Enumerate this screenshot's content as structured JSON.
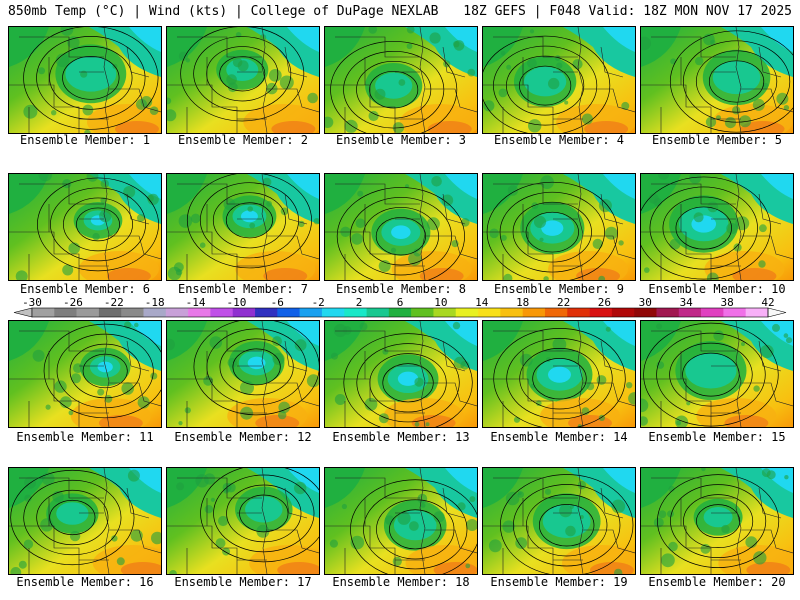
{
  "header": {
    "left": "850mb Temp (°C) | Wind (kts) | College of DuPage NEXLAB",
    "right": "18Z GEFS | F048 Valid: 18Z MON NOV 17 2025"
  },
  "colorbar": {
    "labels": [
      "-30",
      "-26",
      "-22",
      "-18",
      "-14",
      "-10",
      "-6",
      "-2",
      "2",
      "6",
      "10",
      "14",
      "18",
      "22",
      "26",
      "30",
      "34",
      "38",
      "42"
    ],
    "colors": [
      "#a0a0a0",
      "#7e7e7e",
      "#9a9a9a",
      "#6e6e6e",
      "#8a8a8a",
      "#a8a8c8",
      "#c8a0d8",
      "#e878e8",
      "#c050e8",
      "#9030d0",
      "#3030c0",
      "#1060e8",
      "#18a0f0",
      "#20d8f0",
      "#18e8c8",
      "#18c890",
      "#20b040",
      "#60c020",
      "#a8d820",
      "#e8f020",
      "#f8e018",
      "#f8c010",
      "#f89808",
      "#f06808",
      "#e03008",
      "#d81010",
      "#b00808",
      "#900808",
      "#a01850",
      "#c02888",
      "#e040c0",
      "#f070e8",
      "#f8b0f8"
    ]
  },
  "members": [
    {
      "caption": "Ensemble Member: 1"
    },
    {
      "caption": "Ensemble Member: 2"
    },
    {
      "caption": "Ensemble Member: 3"
    },
    {
      "caption": "Ensemble Member: 4"
    },
    {
      "caption": "Ensemble Member: 5"
    },
    {
      "caption": "Ensemble Member: 6"
    },
    {
      "caption": "Ensemble Member: 7"
    },
    {
      "caption": "Ensemble Member: 8"
    },
    {
      "caption": "Ensemble Member: 9"
    },
    {
      "caption": "Ensemble Member: 10"
    },
    {
      "caption": "Ensemble Member: 11"
    },
    {
      "caption": "Ensemble Member: 12"
    },
    {
      "caption": "Ensemble Member: 13"
    },
    {
      "caption": "Ensemble Member: 14"
    },
    {
      "caption": "Ensemble Member: 15"
    },
    {
      "caption": "Ensemble Member: 16"
    },
    {
      "caption": "Ensemble Member: 17"
    },
    {
      "caption": "Ensemble Member: 18"
    },
    {
      "caption": "Ensemble Member: 19"
    },
    {
      "caption": "Ensemble Member: 20"
    }
  ]
}
